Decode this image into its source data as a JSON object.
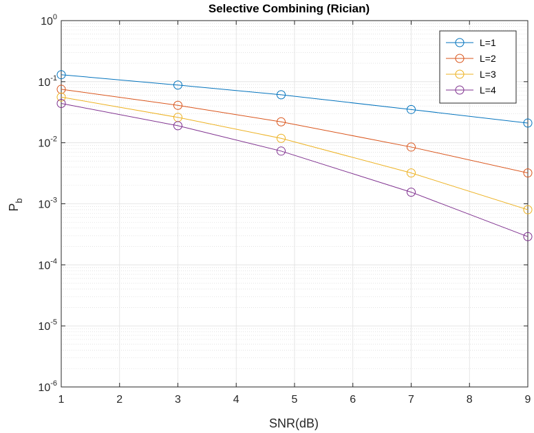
{
  "chart_data": {
    "type": "line",
    "title": "Selective Combining (Rician)",
    "xlabel": "SNR(dB)",
    "ylabel": {
      "base": "P",
      "sub": "b"
    },
    "xlim": [
      1,
      9
    ],
    "ylim": [
      1e-06,
      1
    ],
    "yscale": "log",
    "grid": true,
    "minor_grid": true,
    "x_ticks": [
      1,
      2,
      3,
      4,
      5,
      6,
      7,
      8,
      9
    ],
    "y_ticks": [
      {
        "base": "10",
        "exp": "-6"
      },
      {
        "base": "10",
        "exp": "-5"
      },
      {
        "base": "10",
        "exp": "-4"
      },
      {
        "base": "10",
        "exp": "-3"
      },
      {
        "base": "10",
        "exp": "-2"
      },
      {
        "base": "10",
        "exp": "-1"
      },
      {
        "base": "10",
        "exp": "0"
      }
    ],
    "legend_position": "top-right",
    "x": [
      1,
      3,
      4.77,
      7,
      9
    ],
    "series": [
      {
        "name": "L=1",
        "color": "#0072BD",
        "values": [
          0.13,
          0.088,
          0.061,
          0.035,
          0.021
        ]
      },
      {
        "name": "L=2",
        "color": "#D95319",
        "values": [
          0.075,
          0.041,
          0.022,
          0.0085,
          0.0032
        ]
      },
      {
        "name": "L=3",
        "color": "#EDB120",
        "values": [
          0.056,
          0.026,
          0.0118,
          0.0032,
          0.0008
        ]
      },
      {
        "name": "L=4",
        "color": "#7E2F8E",
        "values": [
          0.044,
          0.019,
          0.0073,
          0.00155,
          0.00029
        ]
      }
    ]
  }
}
